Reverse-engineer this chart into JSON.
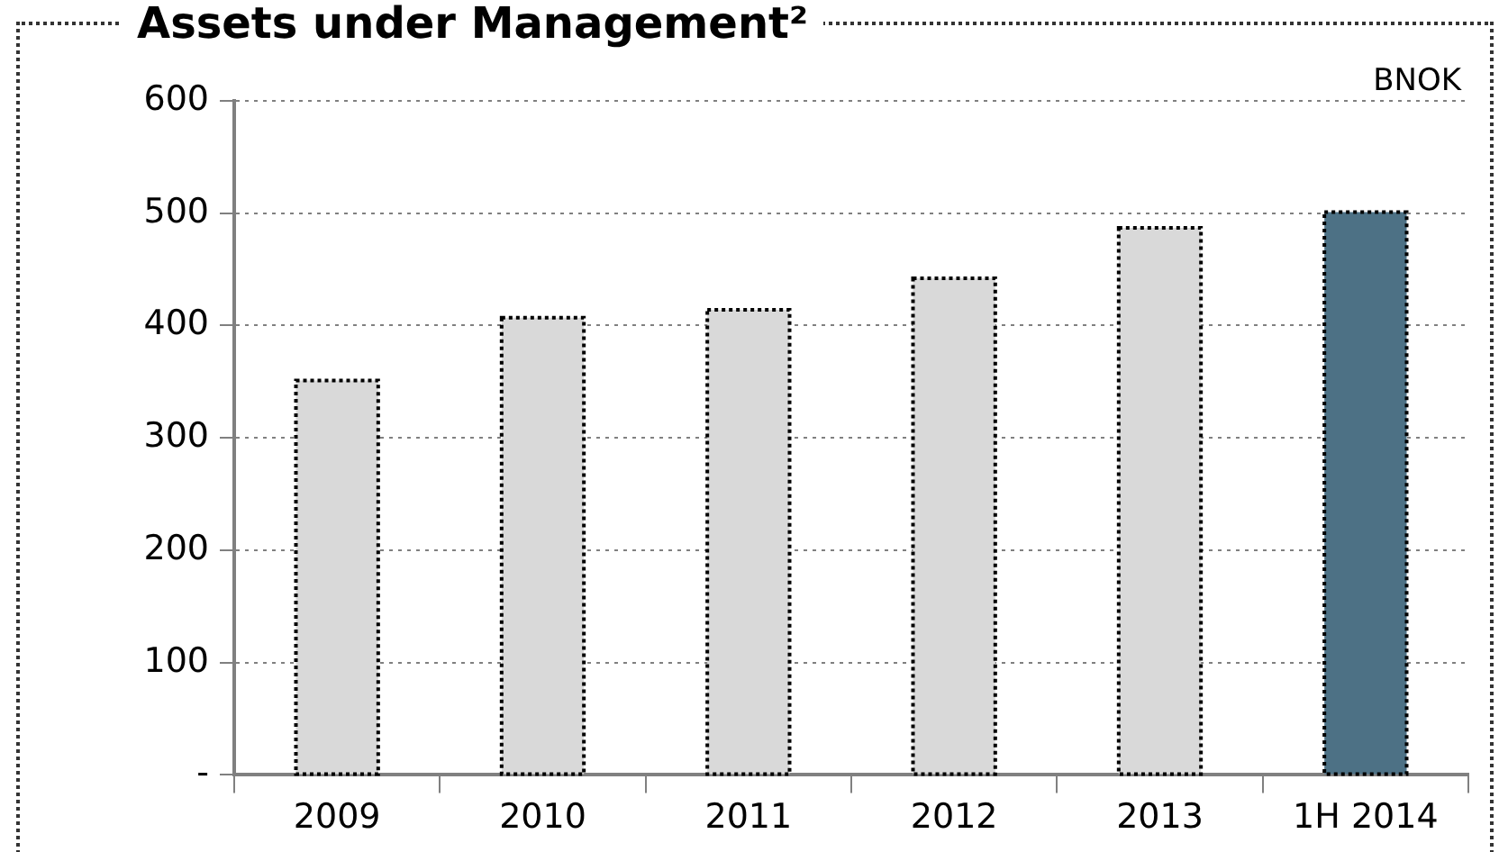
{
  "chart_data": {
    "type": "bar",
    "title": "Assets under Management²",
    "categories": [
      "2009",
      "2010",
      "2011",
      "2012",
      "2013",
      "1H 2014"
    ],
    "values": [
      351,
      407,
      414,
      442,
      487,
      501
    ],
    "colors": [
      "#d9d9d9",
      "#d9d9d9",
      "#d9d9d9",
      "#d9d9d9",
      "#d9d9d9",
      "#4d7185"
    ],
    "ylim": [
      0,
      600
    ],
    "yticks": [
      {
        "value": 0,
        "label": "-"
      },
      100,
      200,
      300,
      400,
      500,
      600
    ],
    "grid": "y",
    "annotations": [
      "BNOK"
    ]
  }
}
